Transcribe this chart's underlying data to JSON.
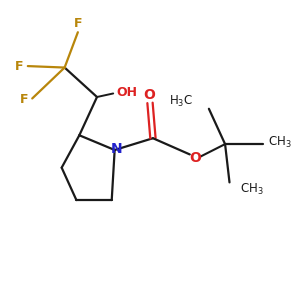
{
  "background_color": "#ffffff",
  "bond_color": "#1a1a1a",
  "N_color": "#2222cc",
  "O_color": "#dd2222",
  "F_color": "#b8860b",
  "figsize": [
    3.0,
    3.0
  ],
  "dpi": 100,
  "xlim": [
    0,
    10
  ],
  "ylim": [
    0,
    10
  ]
}
